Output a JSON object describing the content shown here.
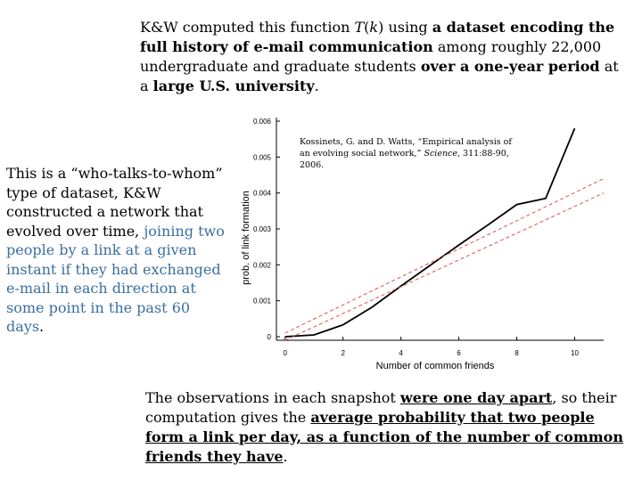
{
  "intro": {
    "t1": "K&W computed this function ",
    "func": "T",
    "t2": "(",
    "var": "k",
    "t3": ") using ",
    "b1": "a dataset encoding the full history of e-mail communication",
    "t4": " among roughly 22,000 undergraduate and graduate students ",
    "b2": "over a one-year period",
    "t5": " at a ",
    "b3": "large U.S. university",
    "t6": "."
  },
  "left": {
    "t1": "This is a “who-talks-to-whom” type of dataset, K&W constructed a network that evolved over time, ",
    "hl": "joining two people by a link at a given instant if they had exchanged e-mail in each direction at some point in the past 60 days",
    "t2": "."
  },
  "bottom": {
    "t1": "The observations in each snapshot ",
    "u1": "were one day apart",
    "t2": ", so their computation gives the ",
    "u2": "average probability that two people form a link per day, as a function of the number of common friends they have",
    "t3": "."
  },
  "citation": {
    "t1": "Kossinets, G. and D. Watts, “Empirical analysis of an evolving social network,” ",
    "journal": "Science",
    "t2": ", 311:88-90, 2006."
  },
  "chart_data": {
    "type": "line",
    "xlabel": "Number of common friends",
    "ylabel": "prob. of link formation",
    "xlim": [
      -0.3,
      11
    ],
    "ylim": [
      -0.0001,
      0.0061
    ],
    "x_ticks": [
      "0",
      "2",
      "4",
      "6",
      "8",
      "10"
    ],
    "y_ticks": [
      "0",
      "0.001",
      "0.002",
      "0.003",
      "0.004",
      "0.005",
      "0.006"
    ],
    "series": [
      {
        "style": "solid",
        "color": "#000000",
        "x": [
          0,
          1,
          2,
          3,
          4,
          5,
          6,
          7,
          8,
          9,
          10
        ],
        "y": [
          0.0,
          5e-05,
          0.00033,
          0.00082,
          0.00141,
          0.00198,
          0.00255,
          0.00311,
          0.00368,
          0.00385,
          0.0058
        ]
      },
      {
        "style": "dashed",
        "color": "#d9544d",
        "x": [
          0,
          11
        ],
        "y": [
          0.0001,
          0.0044
        ]
      },
      {
        "style": "dashed",
        "color": "#d9544d",
        "x": [
          0,
          11
        ],
        "y": [
          -0.0001,
          0.004
        ]
      }
    ]
  }
}
